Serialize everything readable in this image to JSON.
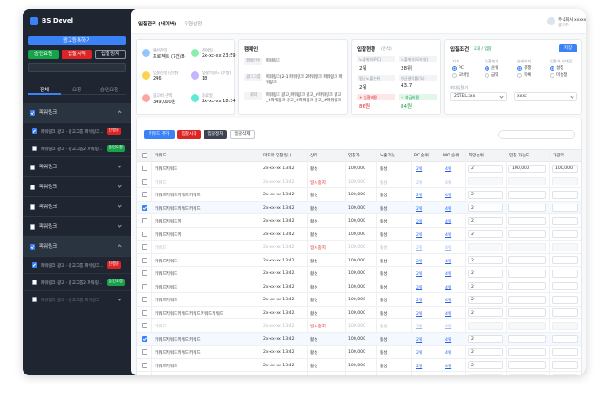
{
  "sidebar": {
    "logo": "BS Devel",
    "register": "광고등록하기",
    "actions": [
      "승인요청",
      "입찰시작",
      "입찰정지"
    ],
    "tabs": [
      "전체",
      "요청",
      "승인요청"
    ],
    "groups": [
      {
        "name": "파워링크",
        "expanded": true,
        "checked": true,
        "items": [
          {
            "label": "파워링크 광고 · 광고그룹 파워링크파워링크",
            "badge": "진행중",
            "checked": true
          },
          {
            "label": "파워링크 광고 · 광고그룹2 파워링크 파워링크",
            "badge": "승인요청",
            "checked": false
          }
        ]
      },
      {
        "name": "파워링크",
        "expanded": false,
        "checked": false,
        "items": []
      },
      {
        "name": "파워링크",
        "expanded": false,
        "checked": false,
        "items": []
      },
      {
        "name": "파워링크",
        "expanded": false,
        "checked": false,
        "items": []
      },
      {
        "name": "파워링크",
        "expanded": false,
        "checked": false,
        "items": []
      },
      {
        "name": "파워링크",
        "expanded": true,
        "checked": true,
        "items": [
          {
            "label": "파워링크 광고 · 광고그룹 파워링크파워링크",
            "badge": "진행중",
            "checked": true
          },
          {
            "label": "파워링크 광고 · 광고그룹2 파워링크 파워링크",
            "badge": "승인요청",
            "checked": false
          },
          {
            "label": "파워링크 광고 · 광고그룹 파워링크",
            "checked": false
          }
        ]
      }
    ]
  },
  "header": {
    "tabs": [
      "입찰관리 (네이버)",
      "유형설정"
    ],
    "user": "주식회사 xxxxxxxx",
    "role": "광고주"
  },
  "summary": [
    {
      "label": "예산잔액",
      "value": "프로젝트 (7건/8)"
    },
    {
      "label": "잔여일",
      "value": "2x-xx-xx 23:59"
    },
    {
      "label": "입찰진행 (진행)",
      "value": "246"
    },
    {
      "label": "입찰키워드 (주말)",
      "value": "18"
    },
    {
      "label": "광고비 잔액",
      "value": "349,000원"
    },
    {
      "label": "종료일",
      "value": "2x-xx-xx 18:34"
    }
  ],
  "campaign": {
    "title": "캠페인",
    "rows": [
      {
        "label": "캠페인명",
        "value": "파워링크"
      },
      {
        "label": "광고그룹",
        "value": "파워링크(2-1)파워링크 2파워링크 파워링크 파워링크"
      },
      {
        "label": "제외",
        "value": "파워링크 광고_파워링크 광고_#파워링크 광고_#파워링크 광고_#파워링크 광고_#파워링크"
      }
    ]
  },
  "status": {
    "title": "입찰현황",
    "sub": "(분석)",
    "cells": [
      {
        "label": "노출위치(PC)",
        "value": "2위"
      },
      {
        "label": "노출위치(모바일)",
        "value": "28위"
      },
      {
        "label": "평균노출순위",
        "value": "2위"
      },
      {
        "label": "평균클릭률(%)",
        "value": "43.7"
      },
      {
        "label": "+ 입찰비용",
        "value": "86원"
      },
      {
        "label": "+ 과금비용",
        "value": "84원"
      }
    ]
  },
  "conditions": {
    "title": "입찰조건",
    "sub": "2개 / 입찰",
    "save": "저장",
    "fields": [
      {
        "label": "기기",
        "options": [
          "PC",
          "모바일"
        ]
      },
      {
        "label": "입찰방식",
        "options": [
          "순위",
          "금액"
        ]
      },
      {
        "label": "순위유지",
        "options": [
          "경쟁",
          "목록"
        ]
      },
      {
        "label": "입찰가 최대값",
        "options": [
          "설정",
          "미설정"
        ]
      }
    ],
    "select_label": "최대입찰가",
    "selects": [
      "25TEL.xxx",
      "xxxx"
    ]
  },
  "toolbar": {
    "buttons": [
      "키워드 추가",
      "입찰시작",
      "입찰정지",
      "일괄삭제"
    ]
  },
  "table": {
    "columns": [
      "키워드",
      "마지막 입찰일시",
      "상태",
      "입찰가",
      "노출기능",
      "PC 순위",
      "MO 순위",
      "희망순위",
      "입찰 가능도",
      "가감액"
    ],
    "rows": [
      {
        "keyword": "키워드키워드",
        "date": "2x-xx-xx 13:42",
        "status": "활성",
        "bid": "100,000",
        "exposure": "활성",
        "pc": "2위",
        "mo": "4위",
        "inputs": [
          "2",
          "100,000",
          "100,000"
        ],
        "checked": false,
        "muted": false
      },
      {
        "keyword": "키워드",
        "date": "2x-xx-xx 13:42",
        "status": "일시중지",
        "bid": "100,000",
        "exposure": "활성",
        "pc": "2위",
        "mo": "4위",
        "inputs": [],
        "checked": false,
        "muted": true
      },
      {
        "keyword": "키워드키워드키워드키워드",
        "date": "2x-xx-xx 13:42",
        "status": "활성",
        "bid": "100,000",
        "exposure": "활성",
        "pc": "2위",
        "mo": "4위",
        "inputs": [
          "2"
        ],
        "checked": false,
        "muted": false
      },
      {
        "keyword": "키워드키워드키워드키워드",
        "date": "2x-xx-xx 13:42",
        "status": "활성",
        "bid": "100,000",
        "exposure": "활성",
        "pc": "2위",
        "mo": "4위",
        "inputs": [
          "2"
        ],
        "checked": true,
        "muted": false
      },
      {
        "keyword": "키워드키워드키",
        "date": "2x-xx-xx 13:42",
        "status": "활성",
        "bid": "100,000",
        "exposure": "활성",
        "pc": "2위",
        "mo": "4위",
        "inputs": [
          "2"
        ],
        "checked": false,
        "muted": false
      },
      {
        "keyword": "키워드키워드키",
        "date": "2x-xx-xx 13:42",
        "status": "활성",
        "bid": "100,000",
        "exposure": "활성",
        "pc": "2위",
        "mo": "4위",
        "inputs": [
          "2"
        ],
        "checked": false,
        "muted": false
      },
      {
        "keyword": "키워드",
        "date": "2x-xx-xx 13:42",
        "status": "일시중지",
        "bid": "100,000",
        "exposure": "활성",
        "pc": "2위",
        "mo": "4위",
        "inputs": [],
        "checked": false,
        "muted": true
      },
      {
        "keyword": "키워드키워드",
        "date": "2x-xx-xx 13:42",
        "status": "활성",
        "bid": "100,000",
        "exposure": "활성",
        "pc": "2위",
        "mo": "4위",
        "inputs": [
          "2"
        ],
        "checked": false,
        "muted": false
      },
      {
        "keyword": "키워드키워드",
        "date": "2x-xx-xx 13:42",
        "status": "활성",
        "bid": "100,000",
        "exposure": "활성",
        "pc": "2위",
        "mo": "4위",
        "inputs": [
          "2"
        ],
        "checked": false,
        "muted": false
      },
      {
        "keyword": "키워드키워드",
        "date": "2x-xx-xx 13:42",
        "status": "활성",
        "bid": "100,000",
        "exposure": "활성",
        "pc": "2위",
        "mo": "4위",
        "inputs": [
          "2"
        ],
        "checked": false,
        "muted": false
      },
      {
        "keyword": "키워드키워드",
        "date": "2x-xx-xx 13:42",
        "status": "활성",
        "bid": "100,000",
        "exposure": "활성",
        "pc": "2위",
        "mo": "4위",
        "inputs": [
          "2"
        ],
        "checked": false,
        "muted": false
      },
      {
        "keyword": "키워드키워드키워드키워드키워드키워드",
        "date": "2x-xx-xx 13:42",
        "status": "활성",
        "bid": "100,000",
        "exposure": "활성",
        "pc": "2위",
        "mo": "4위",
        "inputs": [
          "2"
        ],
        "checked": false,
        "muted": false
      },
      {
        "keyword": "키워드",
        "date": "2x-xx-xx 13:42",
        "status": "일시중지",
        "bid": "100,000",
        "exposure": "활성",
        "pc": "2위",
        "mo": "4위",
        "inputs": [],
        "checked": false,
        "muted": true
      },
      {
        "keyword": "키워드키워드키워드키워드",
        "date": "2x-xx-xx 13:42",
        "status": "활성",
        "bid": "100,000",
        "exposure": "활성",
        "pc": "2위",
        "mo": "4위",
        "inputs": [
          "2"
        ],
        "checked": true,
        "muted": false
      },
      {
        "keyword": "키워드키워드키워드키워드",
        "date": "2x-xx-xx 13:42",
        "status": "활성",
        "bid": "100,000",
        "exposure": "활성",
        "pc": "2위",
        "mo": "4위",
        "inputs": [
          "2"
        ],
        "checked": false,
        "muted": false
      },
      {
        "keyword": "키워드키워드",
        "date": "2x-xx-xx 13:42",
        "status": "활성",
        "bid": "100,000",
        "exposure": "활성",
        "pc": "2위",
        "mo": "4위",
        "inputs": [
          "2"
        ],
        "checked": false,
        "muted": false
      },
      {
        "keyword": "키워드",
        "date": "2x-xx-xx 13:42",
        "status": "일시중지",
        "bid": "100,000",
        "exposure": "활성",
        "pc": "2위",
        "mo": "4위",
        "inputs": [],
        "checked": false,
        "muted": true
      }
    ]
  }
}
